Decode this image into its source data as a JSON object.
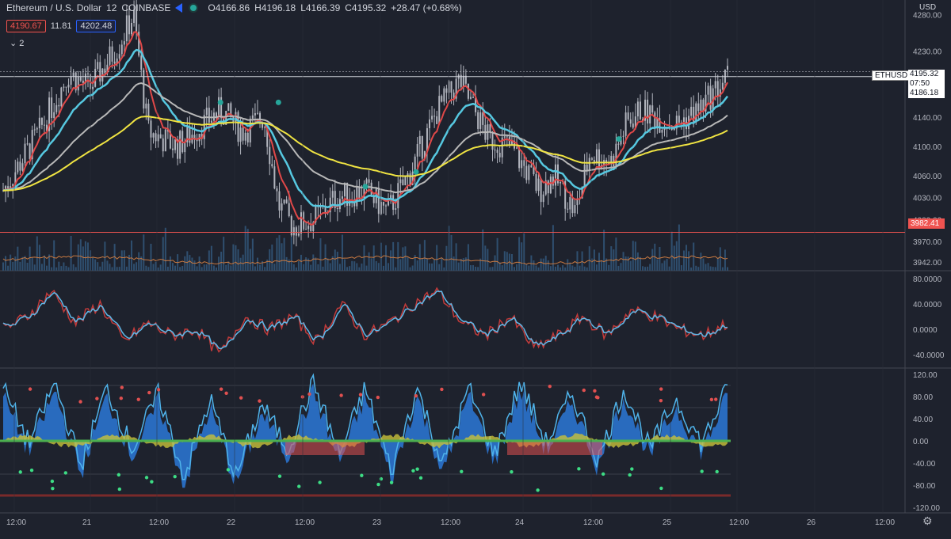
{
  "header": {
    "symbol": "Ethereum / U.S. Dollar",
    "interval": "12",
    "exchange": "COINBASE",
    "open": "O4166.86",
    "high": "H4196.18",
    "low": "L4166.39",
    "close": "C4195.32",
    "change": "+28.47 (+0.68%)"
  },
  "badges": {
    "bid": "4190.67",
    "spread": "11.81",
    "ask": "4202.48",
    "collapsed_count": "2"
  },
  "axis": {
    "currency": "USD",
    "symbol_tag": "ETHUSD",
    "current_price": "4195.32",
    "countdown": "07:50",
    "current_low": "4186.18",
    "line_level": "3982.41",
    "price_ticks": [
      "4280.00",
      "4230.00",
      "4195.32",
      "4140.00",
      "4100.00",
      "4060.00",
      "4030.00",
      "4000.00",
      "3970.00",
      "3942.00"
    ],
    "osc1_ticks": [
      "80.0000",
      "40.0000",
      "0.0000",
      "-40.0000"
    ],
    "osc2_ticks": [
      "120.00",
      "80.00",
      "40.00",
      "0.00",
      "-40.00",
      "-80.00",
      "-120.00"
    ],
    "time_ticks": [
      "12:00",
      "21",
      "12:00",
      "22",
      "12:00",
      "23",
      "12:00",
      "24",
      "12:00",
      "25",
      "12:00",
      "26",
      "12:00"
    ]
  },
  "colors": {
    "bg": "#1e222d",
    "grid": "#2a2e39",
    "candle": "#b2b5be",
    "ema_fast": "#e04848",
    "ema_mid": "#56c8e0",
    "ema_slow": "#b8b8b8",
    "ema_long": "#f0e442",
    "volume": "#2f4f6f",
    "vol_ma": "#c87941",
    "osc_blue": "#2b78d8",
    "osc_line": "#4fb3ea"
  },
  "chart_data": [
    {
      "type": "candlestick",
      "title": "Ethereum / U.S. Dollar, 12, COINBASE",
      "ylim": [
        3930,
        4300
      ],
      "x_ticks": [
        "12:00",
        "21",
        "12:00",
        "22",
        "12:00",
        "23",
        "12:00",
        "24",
        "12:00",
        "25",
        "12:00",
        "26",
        "12:00"
      ],
      "series": [
        {
          "name": "close",
          "x_knots": [
            0,
            0.05,
            0.09,
            0.12,
            0.16,
            0.18,
            0.2,
            0.24,
            0.3,
            0.33,
            0.36,
            0.38,
            0.4,
            0.43,
            0.46,
            0.5,
            0.53,
            0.56,
            0.6,
            0.63,
            0.67,
            0.7,
            0.74,
            0.76,
            0.79,
            0.81,
            0.84,
            0.86,
            0.88,
            0.9,
            0.93,
            0.96,
            1.0
          ],
          "values": [
            4040,
            4120,
            4200,
            4180,
            4240,
            4280,
            4120,
            4100,
            4150,
            4120,
            4140,
            4020,
            3990,
            4000,
            4030,
            4040,
            4010,
            4060,
            4150,
            4190,
            4110,
            4100,
            4040,
            4060,
            4010,
            4090,
            4080,
            4130,
            4150,
            4140,
            4130,
            4150,
            4195
          ]
        }
      ]
    },
    {
      "type": "line",
      "title": "",
      "ylim": [
        -60,
        90
      ],
      "values_hint": [
        0,
        20,
        60,
        10,
        40,
        -20,
        10,
        -10,
        0,
        -40,
        20,
        0,
        20,
        -20,
        40,
        -10,
        10,
        40,
        60,
        10,
        -10,
        20,
        -30,
        -10,
        20,
        -10,
        30,
        20,
        0,
        -10,
        10
      ]
    },
    {
      "type": "area",
      "title": "",
      "ylim": [
        -130,
        130
      ],
      "values_hint": [
        80,
        -20,
        90,
        -60,
        80,
        -30,
        70,
        -80,
        60,
        -80,
        50,
        -30,
        90,
        -40,
        80,
        -70,
        80,
        -60,
        80,
        -40,
        90,
        -20,
        70,
        -50,
        80,
        -30,
        60,
        -20,
        80
      ]
    }
  ]
}
